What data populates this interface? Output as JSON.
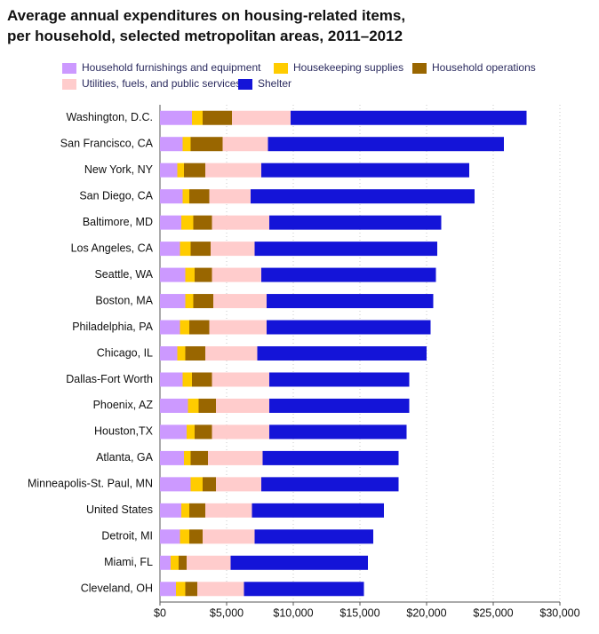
{
  "chart_data": {
    "type": "stacked-bar-horizontal",
    "title": "Average annual expenditures on housing-related items, per household, selected metropolitan areas, 2011–2012",
    "categories": [
      "Washington, D.C.",
      "San Francisco, CA",
      "New York, NY",
      "San Diego, CA",
      "Baltimore, MD",
      "Los Angeles, CA",
      "Seattle, WA",
      "Boston, MA",
      "Philadelphia, PA",
      "Chicago, IL",
      "Dallas-Fort Worth",
      "Phoenix, AZ",
      "Houston,TX",
      "Atlanta, GA",
      "Minneapolis-St. Paul, MN",
      "United States",
      "Detroit, MI",
      "Miami, FL",
      "Cleveland, OH"
    ],
    "series": [
      {
        "name": "Household furnishings and equipment",
        "color": "#cc99ff",
        "values": [
          2400,
          1700,
          1300,
          1700,
          1600,
          1500,
          1900,
          1900,
          1500,
          1300,
          1700,
          2100,
          2000,
          1800,
          2300,
          1600,
          1500,
          800,
          1200
        ]
      },
      {
        "name": "Housekeeping supplies",
        "color": "#ffcc00",
        "values": [
          800,
          600,
          500,
          500,
          900,
          800,
          700,
          600,
          700,
          600,
          700,
          800,
          600,
          500,
          900,
          600,
          700,
          600,
          700
        ]
      },
      {
        "name": "Household operations",
        "color": "#996600",
        "values": [
          2200,
          2400,
          1600,
          1500,
          1400,
          1500,
          1300,
          1500,
          1500,
          1500,
          1500,
          1300,
          1300,
          1300,
          1000,
          1200,
          1000,
          600,
          900
        ]
      },
      {
        "name": "Utilities, fuels, and public services",
        "color": "#ffcccc",
        "values": [
          4400,
          3400,
          4200,
          3100,
          4300,
          3300,
          3700,
          4000,
          4300,
          3900,
          4300,
          4000,
          4300,
          4100,
          3400,
          3500,
          3900,
          3300,
          3500
        ]
      },
      {
        "name": "Shelter",
        "color": "#1414d8",
        "values": [
          17700,
          17700,
          15600,
          16800,
          12900,
          13700,
          13100,
          12500,
          12300,
          12700,
          10500,
          10500,
          10300,
          10200,
          10300,
          9900,
          8900,
          10300,
          9000
        ]
      }
    ],
    "xlim": [
      0,
      30000
    ],
    "xticks": [
      {
        "value": 0,
        "label": "$0"
      },
      {
        "value": 5000,
        "label": "$5,000"
      },
      {
        "value": 10000,
        "label": "$10,000"
      },
      {
        "value": 15000,
        "label": "$15,000"
      },
      {
        "value": 20000,
        "label": "$20,000"
      },
      {
        "value": 25000,
        "label": "$25,000"
      },
      {
        "value": 30000,
        "label": "$30,000"
      }
    ],
    "grid": true
  }
}
